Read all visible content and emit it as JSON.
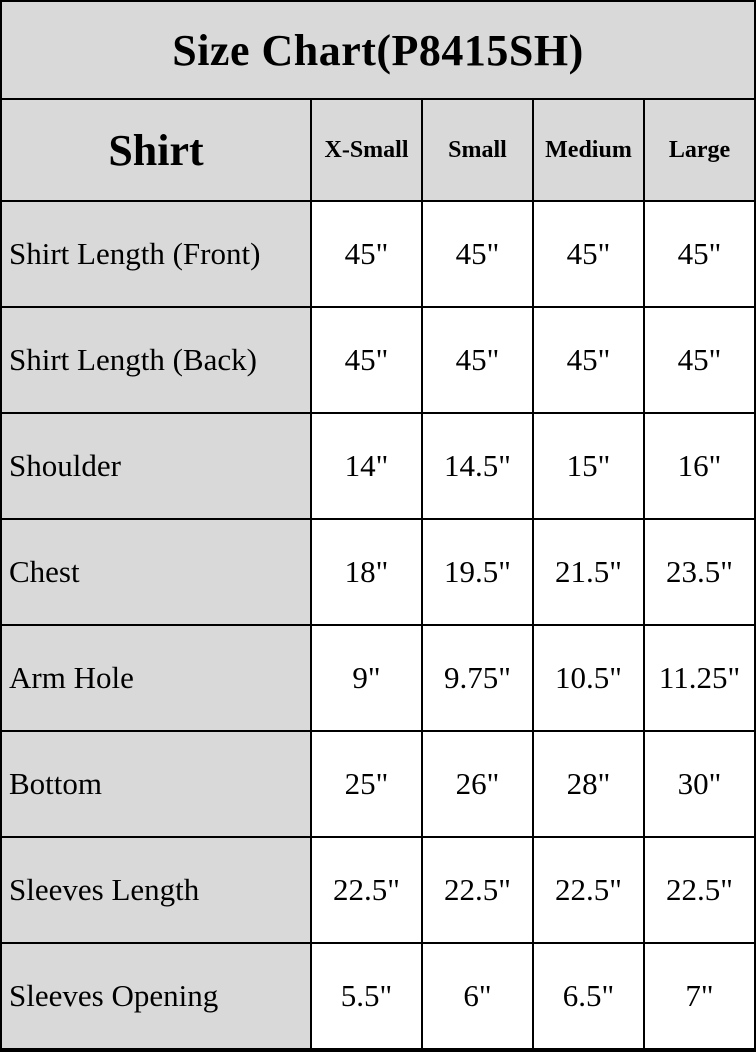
{
  "title": "Size Chart(P8415SH)",
  "table": {
    "corner_label": "Shirt",
    "size_columns": [
      "X-Small",
      "Small",
      "Medium",
      "Large"
    ],
    "rows": [
      {
        "label": "Shirt Length (Front)",
        "values": [
          "45\"",
          "45\"",
          "45\"",
          "45\""
        ]
      },
      {
        "label": "Shirt Length (Back)",
        "values": [
          "45\"",
          "45\"",
          "45\"",
          "45\""
        ]
      },
      {
        "label": "Shoulder",
        "values": [
          "14\"",
          "14.5\"",
          "15\"",
          "16\""
        ]
      },
      {
        "label": "Chest",
        "values": [
          "18\"",
          "19.5\"",
          "21.5\"",
          "23.5\""
        ]
      },
      {
        "label": "Arm Hole",
        "values": [
          "9\"",
          "9.75\"",
          "10.5\"",
          "11.25\""
        ]
      },
      {
        "label": "Bottom",
        "values": [
          "25\"",
          "26\"",
          "28\"",
          "30\""
        ]
      },
      {
        "label": "Sleeves Length",
        "values": [
          "22.5\"",
          "22.5\"",
          "22.5\"",
          "22.5\""
        ]
      },
      {
        "label": "Sleeves Opening",
        "values": [
          "5.5\"",
          "6\"",
          "6.5\"",
          "7\""
        ]
      }
    ]
  },
  "colors": {
    "header_background": "#d9d9d9",
    "cell_background": "#ffffff",
    "border": "#000000",
    "text": "#000000"
  },
  "chart_data": {
    "type": "table",
    "title": "Size Chart(P8415SH)",
    "product": "Shirt",
    "columns": [
      "X-Small",
      "Small",
      "Medium",
      "Large"
    ],
    "measurements": [
      {
        "name": "Shirt Length (Front)",
        "values_inches": [
          45,
          45,
          45,
          45
        ]
      },
      {
        "name": "Shirt Length (Back)",
        "values_inches": [
          45,
          45,
          45,
          45
        ]
      },
      {
        "name": "Shoulder",
        "values_inches": [
          14,
          14.5,
          15,
          16
        ]
      },
      {
        "name": "Chest",
        "values_inches": [
          18,
          19.5,
          21.5,
          23.5
        ]
      },
      {
        "name": "Arm Hole",
        "values_inches": [
          9,
          9.75,
          10.5,
          11.25
        ]
      },
      {
        "name": "Bottom",
        "values_inches": [
          25,
          26,
          28,
          30
        ]
      },
      {
        "name": "Sleeves Length",
        "values_inches": [
          22.5,
          22.5,
          22.5,
          22.5
        ]
      },
      {
        "name": "Sleeves Opening",
        "values_inches": [
          5.5,
          6,
          6.5,
          7
        ]
      }
    ]
  }
}
